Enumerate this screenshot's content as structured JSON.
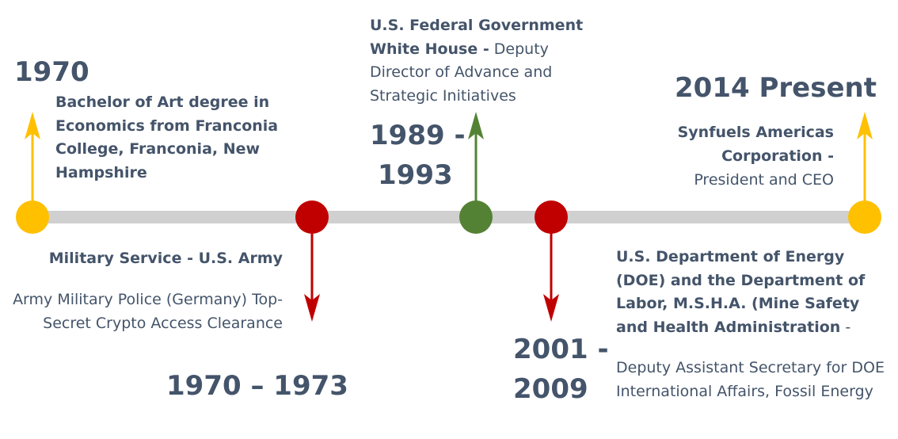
{
  "colors": {
    "axis": "#d0d0d0",
    "gold": "#ffc000",
    "red": "#c00000",
    "green": "#548235",
    "text": "#44546a"
  },
  "events": [
    {
      "year": "1970",
      "color": "gold",
      "direction": "up",
      "title": "Bachelor of Art degree in Economics from Franconia College, Franconia, New Hampshire"
    },
    {
      "year": "1970 – 1973",
      "color": "red",
      "direction": "down",
      "title": "Military Service - U.S. Army",
      "detail": "Army Military Police (Germany) Top-Secret Crypto Access Clearance"
    },
    {
      "year_line1": "1989 -",
      "year_line2": "1993",
      "color": "green",
      "direction": "up",
      "title_line1": "U.S. Federal Government",
      "title_line2": "White House -",
      "role_line2": " Deputy",
      "role_rest": "Director of Advance and Strategic Initiatives"
    },
    {
      "year_line1": "2001 -",
      "year_line2": "2009",
      "color": "red",
      "direction": "down",
      "title": "U.S. Department of Energy (DOE) and the Department of Labor, M.S.H.A. (Mine Safety and Health Administration",
      "title_suffix": " -",
      "detail": "Deputy Assistant Secretary for DOE  International Affairs, Fossil Energy"
    },
    {
      "year": "2014 Present",
      "color": "gold",
      "direction": "up",
      "title": "Synfuels Americas Corporation -",
      "detail": "President and CEO"
    }
  ]
}
